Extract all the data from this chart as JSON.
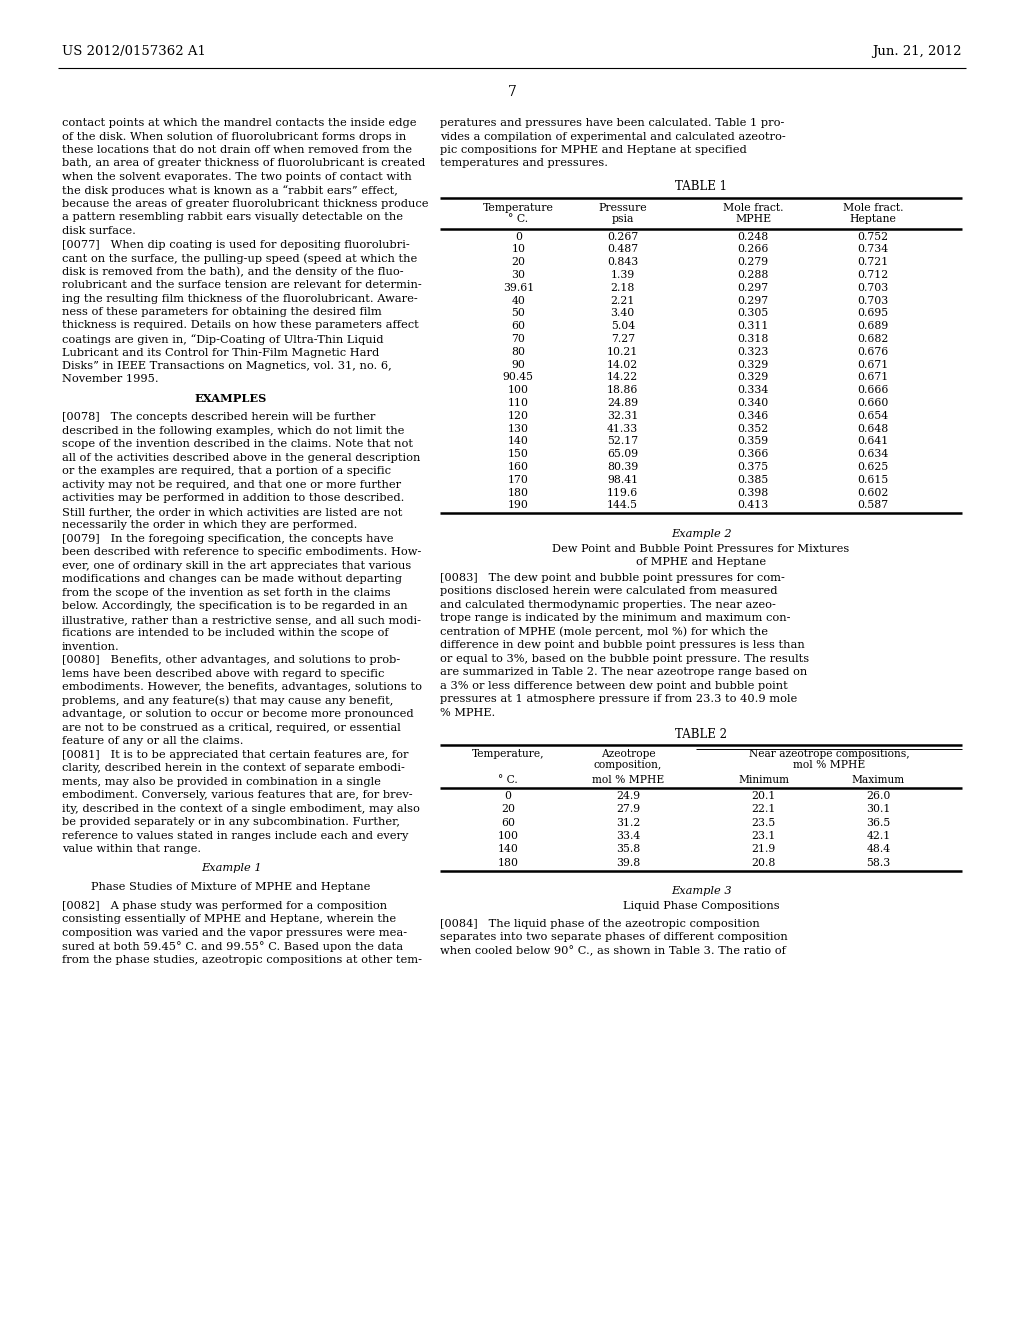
{
  "header_left": "US 2012/0157362 A1",
  "header_right": "Jun. 21, 2012",
  "page_number": "7",
  "background_color": "#ffffff",
  "text_color": "#000000",
  "table1_data": [
    [
      "0",
      "0.267",
      "0.248",
      "0.752"
    ],
    [
      "10",
      "0.487",
      "0.266",
      "0.734"
    ],
    [
      "20",
      "0.843",
      "0.279",
      "0.721"
    ],
    [
      "30",
      "1.39",
      "0.288",
      "0.712"
    ],
    [
      "39.61",
      "2.18",
      "0.297",
      "0.703"
    ],
    [
      "40",
      "2.21",
      "0.297",
      "0.703"
    ],
    [
      "50",
      "3.40",
      "0.305",
      "0.695"
    ],
    [
      "60",
      "5.04",
      "0.311",
      "0.689"
    ],
    [
      "70",
      "7.27",
      "0.318",
      "0.682"
    ],
    [
      "80",
      "10.21",
      "0.323",
      "0.676"
    ],
    [
      "90",
      "14.02",
      "0.329",
      "0.671"
    ],
    [
      "90.45",
      "14.22",
      "0.329",
      "0.671"
    ],
    [
      "100",
      "18.86",
      "0.334",
      "0.666"
    ],
    [
      "110",
      "24.89",
      "0.340",
      "0.660"
    ],
    [
      "120",
      "32.31",
      "0.346",
      "0.654"
    ],
    [
      "130",
      "41.33",
      "0.352",
      "0.648"
    ],
    [
      "140",
      "52.17",
      "0.359",
      "0.641"
    ],
    [
      "150",
      "65.09",
      "0.366",
      "0.634"
    ],
    [
      "160",
      "80.39",
      "0.375",
      "0.625"
    ],
    [
      "170",
      "98.41",
      "0.385",
      "0.615"
    ],
    [
      "180",
      "119.6",
      "0.398",
      "0.602"
    ],
    [
      "190",
      "144.5",
      "0.413",
      "0.587"
    ]
  ],
  "table2_data": [
    [
      "0",
      "24.9",
      "20.1",
      "26.0"
    ],
    [
      "20",
      "27.9",
      "22.1",
      "30.1"
    ],
    [
      "60",
      "31.2",
      "23.5",
      "36.5"
    ],
    [
      "100",
      "33.4",
      "23.1",
      "42.1"
    ],
    [
      "140",
      "35.8",
      "21.9",
      "48.4"
    ],
    [
      "180",
      "39.8",
      "20.8",
      "58.3"
    ]
  ]
}
